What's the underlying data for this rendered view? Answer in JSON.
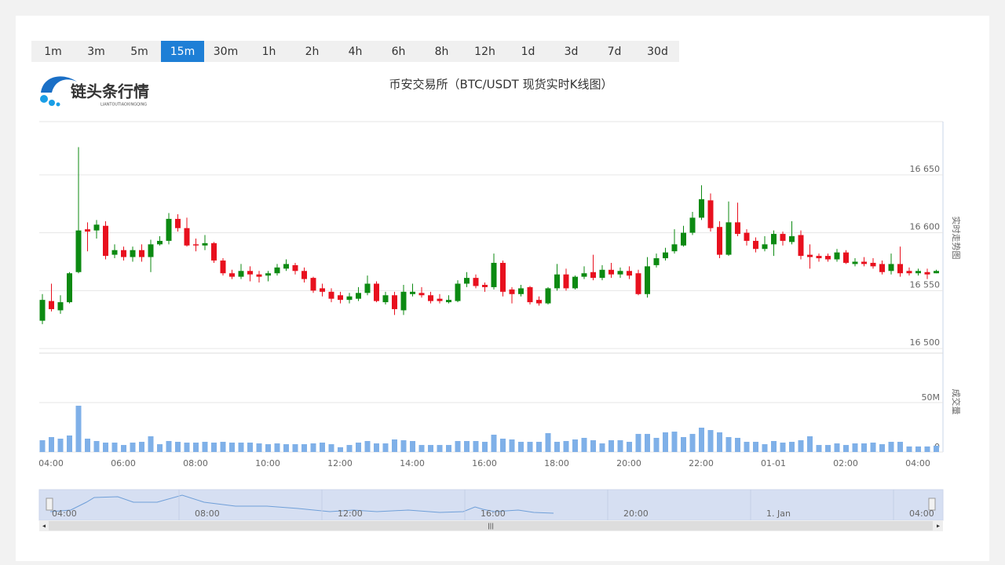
{
  "buttons": {
    "items": [
      "1m",
      "3m",
      "5m",
      "15m",
      "30m",
      "1h",
      "2h",
      "4h",
      "6h",
      "8h",
      "12h",
      "1d",
      "3d",
      "7d",
      "30d"
    ],
    "active_index": 3
  },
  "logo": {
    "name": "链头条行情",
    "pinyin": "LIANTOUTIAOXINGQING"
  },
  "chart_data": {
    "type": "candlestick",
    "title": "币安交易所（BTC/USDT 现货实时K线图）",
    "y_label": "实时走势图",
    "categories": [
      "04:00",
      null,
      null,
      null,
      null,
      null,
      null,
      null,
      "06:00",
      null,
      null,
      null,
      null,
      null,
      null,
      null,
      "08:00",
      null,
      null,
      null,
      null,
      null,
      null,
      null,
      "10:00",
      null,
      null,
      null,
      null,
      null,
      null,
      null,
      "12:00",
      null,
      null,
      null,
      null,
      null,
      null,
      null,
      "14:00",
      null,
      null,
      null,
      null,
      null,
      null,
      null,
      "16:00",
      null,
      null,
      null,
      null,
      null,
      null,
      null,
      "18:00",
      null,
      null,
      null,
      null,
      null,
      null,
      null,
      "20:00",
      null,
      null,
      null,
      null,
      null,
      null,
      null,
      "22:00",
      null,
      null,
      null,
      null,
      null,
      null,
      null,
      "01-01",
      null,
      null,
      null,
      null,
      null,
      null,
      null,
      "02:00",
      null,
      null,
      null,
      null,
      null,
      null,
      null,
      "04:00",
      null,
      null,
      null
    ],
    "open": [
      16524,
      16541,
      16533,
      16540,
      16566,
      16603,
      16602,
      16606,
      16581,
      16585,
      16579,
      16585,
      16579,
      16590,
      16593,
      16612,
      16604,
      16590,
      16589,
      16591,
      16576,
      16565,
      16562,
      16567,
      16564,
      16563,
      16565,
      16569,
      16572,
      16567,
      16561,
      16552,
      16549,
      16546,
      16542,
      16543,
      16548,
      16556,
      16540,
      16546,
      16533,
      16547,
      16548,
      16546,
      16543,
      16540,
      16541,
      16556,
      16561,
      16555,
      16553,
      16574,
      16551,
      16547,
      16553,
      16542,
      16539,
      16552,
      16564,
      16552,
      16562,
      16566,
      16561,
      16568,
      16564,
      16567,
      16565,
      16547,
      16572,
      16578,
      16584,
      16589,
      16600,
      16613,
      16628,
      16605,
      16581,
      16609,
      16600,
      16593,
      16586,
      16590,
      16599,
      16592,
      16598,
      16581,
      16580,
      16580,
      16577,
      16583,
      16573,
      16575,
      16574,
      16573,
      16567,
      16573,
      16567,
      16565,
      16566,
      16565
    ],
    "high": [
      16547,
      16556,
      16546,
      16566,
      16674,
      16609,
      16611,
      16610,
      16590,
      16588,
      16588,
      16590,
      16594,
      16597,
      16617,
      16616,
      16613,
      16595,
      16598,
      16592,
      16578,
      16568,
      16573,
      16571,
      16567,
      16567,
      16573,
      16577,
      16574,
      16570,
      16562,
      16556,
      16552,
      16549,
      16548,
      16553,
      16563,
      16558,
      16549,
      16549,
      16555,
      16556,
      16553,
      16549,
      16547,
      16546,
      16559,
      16566,
      16564,
      16557,
      16582,
      16576,
      16553,
      16555,
      16554,
      16545,
      16553,
      16573,
      16569,
      16563,
      16571,
      16581,
      16572,
      16574,
      16570,
      16571,
      16568,
      16579,
      16582,
      16587,
      16603,
      16606,
      16618,
      16641,
      16634,
      16610,
      16627,
      16626,
      16603,
      16596,
      16597,
      16602,
      16601,
      16610,
      16602,
      16590,
      16582,
      16582,
      16586,
      16585,
      16578,
      16579,
      16578,
      16576,
      16582,
      16588,
      16570,
      16569,
      16569,
      16568
    ],
    "low": [
      16521,
      16532,
      16530,
      16539,
      16565,
      16584,
      16595,
      16577,
      16578,
      16576,
      16575,
      16575,
      16566,
      16589,
      16590,
      16601,
      16588,
      16584,
      16585,
      16574,
      16563,
      16560,
      16560,
      16558,
      16557,
      16558,
      16563,
      16567,
      16564,
      16557,
      16548,
      16545,
      16540,
      16539,
      16539,
      16541,
      16546,
      16540,
      16538,
      16529,
      16529,
      16545,
      16544,
      16539,
      16539,
      16539,
      16540,
      16553,
      16552,
      16549,
      16551,
      16545,
      16539,
      16545,
      16538,
      16537,
      16538,
      16550,
      16550,
      16551,
      16560,
      16559,
      16559,
      16561,
      16561,
      16560,
      16546,
      16544,
      16570,
      16576,
      16582,
      16588,
      16598,
      16611,
      16601,
      16578,
      16580,
      16597,
      16589,
      16583,
      16584,
      16580,
      16589,
      16590,
      16577,
      16569,
      16575,
      16575,
      16575,
      16573,
      16571,
      16571,
      16569,
      16564,
      16564,
      16562,
      16563,
      16563,
      16560,
      16565
    ],
    "close": [
      16542,
      16534,
      16540,
      16565,
      16602,
      16601,
      16607,
      16580,
      16585,
      16579,
      16585,
      16579,
      16590,
      16593,
      16612,
      16604,
      16589,
      16589,
      16591,
      16576,
      16565,
      16562,
      16567,
      16564,
      16562,
      16565,
      16570,
      16573,
      16567,
      16560,
      16550,
      16549,
      16543,
      16542,
      16545,
      16548,
      16556,
      16541,
      16546,
      16534,
      16549,
      16549,
      16546,
      16541,
      16541,
      16542,
      16556,
      16561,
      16554,
      16553,
      16574,
      16549,
      16547,
      16552,
      16540,
      16539,
      16552,
      16564,
      16552,
      16562,
      16565,
      16561,
      16568,
      16564,
      16567,
      16563,
      16547,
      16571,
      16578,
      16583,
      16590,
      16600,
      16613,
      16629,
      16604,
      16581,
      16609,
      16599,
      16593,
      16586,
      16590,
      16599,
      16593,
      16597,
      16580,
      16579,
      16578,
      16577,
      16583,
      16574,
      16575,
      16573,
      16571,
      16566,
      16573,
      16565,
      16565,
      16567,
      16564,
      16567
    ],
    "ylim": [
      16496,
      16696
    ],
    "yticks": [
      {
        "value": 16500,
        "label": "16 500"
      },
      {
        "value": 16550,
        "label": "16 550"
      },
      {
        "value": 16600,
        "label": "16 600"
      },
      {
        "value": 16650,
        "label": "16 650"
      }
    ],
    "up_color": "#0c8a12",
    "down_color": "#e8101e",
    "grid": true,
    "volume": {
      "name": "成交量",
      "color": "#7fb0e8",
      "values": [
        11900000,
        15100000,
        13500000,
        16700000,
        46800000,
        13500000,
        11100000,
        9500000,
        9500000,
        7100000,
        9500000,
        10300000,
        15900000,
        7900000,
        11100000,
        10300000,
        9500000,
        9500000,
        10300000,
        9500000,
        10300000,
        9500000,
        9500000,
        9500000,
        8700000,
        7900000,
        8700000,
        7900000,
        7900000,
        7900000,
        8700000,
        9500000,
        7900000,
        4800000,
        7100000,
        9500000,
        11100000,
        8700000,
        8700000,
        12700000,
        11900000,
        11100000,
        7100000,
        7100000,
        7100000,
        7100000,
        11100000,
        11100000,
        11100000,
        10300000,
        17500000,
        13500000,
        12700000,
        10300000,
        10300000,
        10300000,
        19100000,
        10300000,
        11100000,
        12700000,
        14300000,
        11900000,
        8700000,
        11900000,
        11900000,
        10300000,
        18300000,
        18300000,
        14300000,
        19900000,
        20600000,
        15100000,
        18300000,
        24600000,
        22200000,
        19900000,
        15100000,
        14300000,
        10300000,
        10300000,
        7900000,
        11100000,
        9500000,
        10300000,
        11900000,
        15900000,
        7100000,
        7100000,
        8700000,
        7100000,
        8700000,
        8700000,
        9500000,
        7900000,
        10300000,
        10300000,
        5600000,
        5600000,
        5600000,
        6400000
      ],
      "ylim": [
        0,
        50000000
      ],
      "yticks": [
        0,
        {
          "value": 50000000,
          "label": "50M"
        }
      ]
    }
  },
  "navigator": {
    "labels": [
      "04:00",
      "08:00",
      "12:00",
      "16:00",
      "20:00",
      "1. Jan",
      "04:00"
    ]
  }
}
